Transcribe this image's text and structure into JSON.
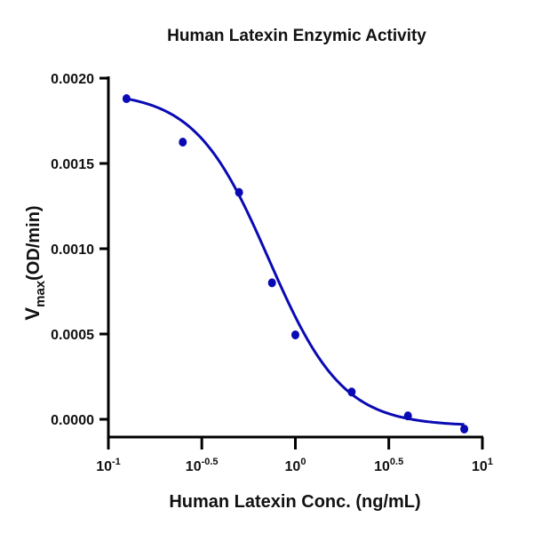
{
  "chart_data": {
    "type": "scatter",
    "title": "Human Latexin Enzymic Activity",
    "xlabel": "Human Latexin Conc. (ng/mL)",
    "ylabel": "Vmax(OD/min)",
    "ylabel_parts": {
      "main": "V",
      "sub": "max",
      "rest": "(OD/min)"
    },
    "x_scale": "log10",
    "xlim": [
      0.1,
      10
    ],
    "ylim": [
      -9e-05,
      0.002
    ],
    "x_ticks": [
      {
        "base": "10",
        "exp": "-1",
        "value": 0.1
      },
      {
        "base": "10",
        "exp": "-0.5",
        "value": 0.316
      },
      {
        "base": "10",
        "exp": "0",
        "value": 1
      },
      {
        "base": "10",
        "exp": "0.5",
        "value": 3.16
      },
      {
        "base": "10",
        "exp": "1",
        "value": 10
      }
    ],
    "y_ticks": [
      "0.0020",
      "0.0015",
      "0.0010",
      "0.0005",
      "0.0000"
    ],
    "y_tick_values": [
      0.002,
      0.0015,
      0.001,
      0.0005,
      0.0
    ],
    "grid": false,
    "legend": null,
    "series": [
      {
        "name": "Human Latexin",
        "color": "#0a0ab4",
        "marker": "circle",
        "x": [
          0.125,
          0.25,
          0.5,
          0.75,
          1.0,
          2.0,
          4.0,
          8.0
        ],
        "y": [
          0.00188,
          0.001625,
          0.00133,
          0.0008,
          0.000495,
          0.00016,
          2e-05,
          -5.7e-05
        ]
      }
    ],
    "fit_curve": {
      "type": "4PL",
      "color": "#0a0ab4",
      "top": 0.00192,
      "bottom": -4e-05,
      "ec50": 0.72,
      "hill": 2.2,
      "x_range": [
        0.125,
        8.0
      ]
    }
  }
}
